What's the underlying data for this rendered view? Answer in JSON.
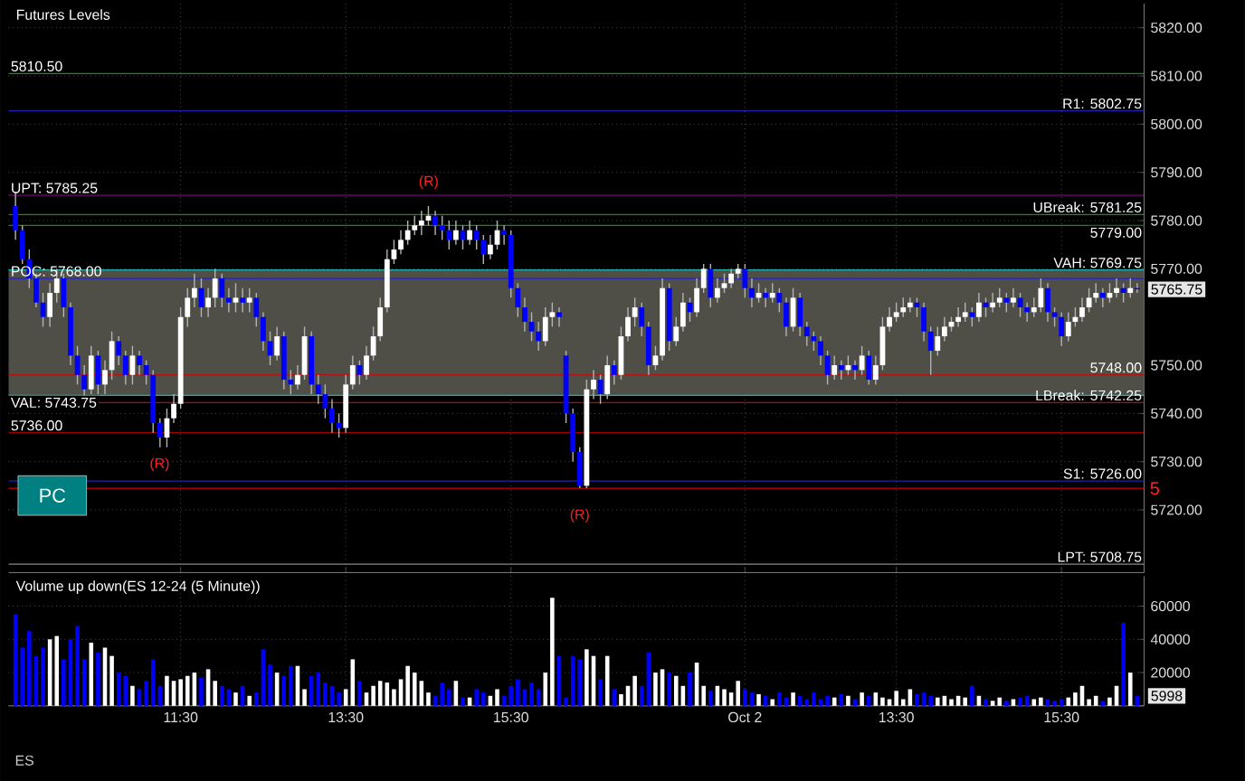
{
  "chart_data": [
    {
      "type": "candlestick",
      "title": "Futures Levels",
      "categories": [
        null,
        null,
        null,
        null,
        null,
        null,
        null,
        null,
        null,
        null,
        null,
        null,
        null,
        null,
        null,
        null,
        null,
        null,
        null,
        null,
        null,
        null,
        null,
        null,
        null,
        null,
        null,
        null,
        null,
        null,
        null,
        null,
        null,
        null,
        null,
        null,
        null,
        null,
        null,
        null,
        null,
        null,
        null,
        null,
        null,
        null,
        null,
        null,
        null,
        null,
        null,
        null,
        null,
        null,
        null,
        null,
        null,
        null,
        null,
        null,
        null,
        null,
        null,
        null,
        null,
        null,
        null,
        null,
        null,
        null,
        null,
        null,
        null,
        null,
        null,
        null,
        null,
        null,
        null,
        null,
        null,
        null,
        null,
        null,
        null,
        null,
        null,
        null,
        null,
        null,
        null,
        null,
        null,
        null,
        null,
        null,
        null,
        null,
        null,
        null,
        null,
        null,
        null,
        null,
        null,
        null,
        null,
        null,
        null,
        null,
        null,
        null,
        null,
        null,
        null,
        null,
        null,
        null,
        null,
        null,
        null,
        null,
        null,
        null,
        null,
        null,
        null,
        null,
        null,
        null,
        null,
        null,
        null,
        null,
        null,
        null,
        null,
        null,
        null,
        null,
        null,
        null,
        null,
        null,
        null,
        null,
        null,
        null,
        null,
        null,
        null,
        null,
        null,
        null,
        null,
        null,
        null,
        null,
        null,
        null,
        null,
        null,
        null,
        null
      ],
      "ohlc": [
        [
          5783,
          5786,
          5776,
          5778
        ],
        [
          5778,
          5779,
          5771,
          5772
        ],
        [
          5772,
          5774,
          5766,
          5768
        ],
        [
          5768,
          5769,
          5762,
          5763
        ],
        [
          5763,
          5765,
          5758,
          5760
        ],
        [
          5760,
          5767,
          5758,
          5765
        ],
        [
          5765,
          5770,
          5763,
          5768
        ],
        [
          5768,
          5769,
          5760,
          5762
        ],
        [
          5762,
          5763,
          5750,
          5752
        ],
        [
          5752,
          5754,
          5746,
          5748
        ],
        [
          5748,
          5750,
          5743,
          5745
        ],
        [
          5745,
          5754,
          5744,
          5752
        ],
        [
          5752,
          5753,
          5744,
          5746
        ],
        [
          5746,
          5751,
          5744,
          5749
        ],
        [
          5749,
          5757,
          5747,
          5755
        ],
        [
          5755,
          5756,
          5750,
          5752
        ],
        [
          5752,
          5753,
          5746,
          5748
        ],
        [
          5748,
          5754,
          5746,
          5752
        ],
        [
          5752,
          5753,
          5748,
          5750
        ],
        [
          5750,
          5751,
          5746,
          5748
        ],
        [
          5748,
          5749,
          5736,
          5738
        ],
        [
          5738,
          5739,
          5733,
          5735
        ],
        [
          5735,
          5741,
          5733,
          5739
        ],
        [
          5739,
          5744,
          5738,
          5742
        ],
        [
          5742,
          5762,
          5741,
          5760
        ],
        [
          5760,
          5766,
          5758,
          5764
        ],
        [
          5764,
          5769,
          5762,
          5766
        ],
        [
          5766,
          5768,
          5760,
          5762
        ],
        [
          5762,
          5766,
          5760,
          5764
        ],
        [
          5764,
          5770,
          5762,
          5768
        ],
        [
          5768,
          5769,
          5762,
          5764
        ],
        [
          5764,
          5766,
          5761,
          5763
        ],
        [
          5763,
          5767,
          5761,
          5764
        ],
        [
          5764,
          5766,
          5761,
          5763
        ],
        [
          5763,
          5766,
          5761,
          5764
        ],
        [
          5764,
          5765,
          5758,
          5760
        ],
        [
          5760,
          5761,
          5753,
          5755
        ],
        [
          5755,
          5757,
          5750,
          5752
        ],
        [
          5752,
          5758,
          5751,
          5756
        ],
        [
          5756,
          5757,
          5745,
          5747
        ],
        [
          5747,
          5749,
          5744,
          5746
        ],
        [
          5746,
          5750,
          5745,
          5748
        ],
        [
          5748,
          5758,
          5747,
          5756
        ],
        [
          5756,
          5757,
          5744,
          5746
        ],
        [
          5746,
          5748,
          5742,
          5744
        ],
        [
          5744,
          5746,
          5739,
          5741
        ],
        [
          5741,
          5743,
          5736,
          5738
        ],
        [
          5738,
          5740,
          5735,
          5737
        ],
        [
          5737,
          5748,
          5736,
          5746
        ],
        [
          5746,
          5752,
          5745,
          5750
        ],
        [
          5750,
          5751,
          5746,
          5748
        ],
        [
          5748,
          5754,
          5747,
          5752
        ],
        [
          5752,
          5758,
          5751,
          5756
        ],
        [
          5756,
          5764,
          5755,
          5762
        ],
        [
          5762,
          5774,
          5761,
          5772
        ],
        [
          5772,
          5776,
          5771,
          5774
        ],
        [
          5774,
          5778,
          5773,
          5776
        ],
        [
          5776,
          5780,
          5775,
          5778
        ],
        [
          5778,
          5781,
          5777,
          5779
        ],
        [
          5779,
          5782,
          5777,
          5780
        ],
        [
          5780,
          5783,
          5779,
          5781
        ],
        [
          5781,
          5782,
          5777,
          5779
        ],
        [
          5779,
          5781,
          5776,
          5778
        ],
        [
          5778,
          5780,
          5774,
          5776
        ],
        [
          5776,
          5780,
          5775,
          5778
        ],
        [
          5778,
          5779,
          5774,
          5776
        ],
        [
          5776,
          5780,
          5775,
          5778
        ],
        [
          5778,
          5779,
          5774,
          5776
        ],
        [
          5776,
          5777,
          5771,
          5773
        ],
        [
          5773,
          5777,
          5772,
          5775
        ],
        [
          5775,
          5780,
          5774,
          5778
        ],
        [
          5778,
          5779,
          5775,
          5777
        ],
        [
          5777,
          5778,
          5764,
          5766
        ],
        [
          5766,
          5767,
          5760,
          5762
        ],
        [
          5762,
          5764,
          5757,
          5759
        ],
        [
          5759,
          5761,
          5755,
          5757
        ],
        [
          5757,
          5759,
          5753,
          5755
        ],
        [
          5755,
          5762,
          5754,
          5760
        ],
        [
          5760,
          5763,
          5758,
          5761
        ],
        [
          5761,
          5762,
          5758,
          5760
        ],
        [
          5752,
          5753,
          5738,
          5740
        ],
        [
          5740,
          5741,
          5730,
          5732
        ],
        [
          5732,
          5733,
          5724.5,
          5725
        ],
        [
          5725,
          5747,
          5724.5,
          5745
        ],
        [
          5745,
          5749,
          5743,
          5747
        ],
        [
          5747,
          5748,
          5742,
          5744
        ],
        [
          5744,
          5752,
          5743,
          5750
        ],
        [
          5750,
          5751,
          5746,
          5748
        ],
        [
          5748,
          5758,
          5747,
          5756
        ],
        [
          5756,
          5762,
          5755,
          5760
        ],
        [
          5760,
          5764,
          5758,
          5762
        ],
        [
          5762,
          5763,
          5756,
          5758
        ],
        [
          5758,
          5759,
          5748,
          5750
        ],
        [
          5750,
          5754,
          5749,
          5752
        ],
        [
          5752,
          5768,
          5751,
          5766
        ],
        [
          5766,
          5767,
          5753,
          5755
        ],
        [
          5755,
          5760,
          5754,
          5758
        ],
        [
          5758,
          5765,
          5757,
          5763
        ],
        [
          5763,
          5764,
          5759,
          5761
        ],
        [
          5761,
          5768,
          5760,
          5766
        ],
        [
          5766,
          5771,
          5765,
          5770
        ],
        [
          5770,
          5771,
          5762,
          5764
        ],
        [
          5764,
          5768,
          5763,
          5766
        ],
        [
          5766,
          5769,
          5765,
          5767
        ],
        [
          5767,
          5770,
          5766,
          5769
        ],
        [
          5769,
          5771,
          5768,
          5770
        ],
        [
          5770,
          5771,
          5764,
          5766
        ],
        [
          5766,
          5768,
          5762,
          5764
        ],
        [
          5764,
          5767,
          5763,
          5765
        ],
        [
          5765,
          5766,
          5762,
          5764
        ],
        [
          5764,
          5767,
          5763,
          5765
        ],
        [
          5765,
          5766,
          5761,
          5763
        ],
        [
          5763,
          5764,
          5756,
          5758
        ],
        [
          5758,
          5766,
          5757,
          5764
        ],
        [
          5764,
          5765,
          5756,
          5758
        ],
        [
          5758,
          5759,
          5754,
          5756
        ],
        [
          5756,
          5757,
          5753,
          5755
        ],
        [
          5755,
          5756,
          5750,
          5752
        ],
        [
          5752,
          5753,
          5746,
          5748
        ],
        [
          5748,
          5752,
          5747,
          5750
        ],
        [
          5750,
          5751,
          5747,
          5749
        ],
        [
          5749,
          5752,
          5748,
          5750
        ],
        [
          5750,
          5751,
          5747,
          5749
        ],
        [
          5749,
          5754,
          5748,
          5752
        ],
        [
          5752,
          5753,
          5746,
          5747
        ],
        [
          5747,
          5752,
          5746,
          5750
        ],
        [
          5750,
          5760,
          5749,
          5758
        ],
        [
          5758,
          5762,
          5757,
          5760
        ],
        [
          5760,
          5763,
          5759,
          5761
        ],
        [
          5761,
          5764,
          5760,
          5762
        ],
        [
          5762,
          5764,
          5761,
          5763
        ],
        [
          5763,
          5764,
          5760,
          5762
        ],
        [
          5762,
          5763,
          5755,
          5757
        ],
        [
          5757,
          5758,
          5748,
          5753
        ],
        [
          5753,
          5758,
          5752,
          5756
        ],
        [
          5756,
          5760,
          5755,
          5758
        ],
        [
          5758,
          5760,
          5757,
          5759
        ],
        [
          5759,
          5762,
          5758,
          5760
        ],
        [
          5760,
          5763,
          5759,
          5761
        ],
        [
          5761,
          5762,
          5758,
          5760
        ],
        [
          5760,
          5765,
          5759,
          5763
        ],
        [
          5763,
          5764,
          5760,
          5762
        ],
        [
          5762,
          5765,
          5761,
          5763
        ],
        [
          5763,
          5766,
          5762,
          5764
        ],
        [
          5764,
          5765,
          5761,
          5763
        ],
        [
          5763,
          5766,
          5762,
          5764
        ],
        [
          5764,
          5765,
          5760,
          5762
        ],
        [
          5762,
          5763,
          5759,
          5761
        ],
        [
          5761,
          5764,
          5760,
          5762
        ],
        [
          5762,
          5768,
          5761,
          5766
        ],
        [
          5766,
          5767,
          5759,
          5761
        ],
        [
          5761,
          5762,
          5758,
          5760
        ],
        [
          5760,
          5761,
          5754,
          5756
        ],
        [
          5756,
          5761,
          5755,
          5759
        ],
        [
          5759,
          5762,
          5758,
          5760
        ],
        [
          5760,
          5764,
          5759,
          5762
        ],
        [
          5762,
          5766,
          5761,
          5764
        ],
        [
          5764,
          5767,
          5763,
          5765
        ],
        [
          5765,
          5766,
          5762,
          5764
        ],
        [
          5764,
          5767,
          5763,
          5765
        ],
        [
          5765,
          5768,
          5764,
          5766
        ],
        [
          5766,
          5767,
          5763,
          5765
        ],
        [
          5765,
          5768,
          5764,
          5766
        ],
        [
          5766,
          5767,
          5765,
          5765.75
        ]
      ],
      "colors": [
        "#0000ff",
        "#0000ff",
        "#0000ff",
        "#0000ff",
        "#0000ff",
        "#ffffff",
        "#ffffff",
        "#0000ff",
        "#0000ff",
        "#0000ff",
        "#0000ff",
        "#ffffff",
        "#0000ff",
        "#ffffff",
        "#ffffff",
        "#0000ff",
        "#0000ff",
        "#ffffff",
        "#0000ff",
        "#0000ff",
        "#0000ff",
        "#0000ff",
        "#ffffff",
        "#ffffff",
        "#ffffff",
        "#ffffff",
        "#ffffff",
        "#0000ff",
        "#ffffff",
        "#ffffff",
        "#0000ff",
        "#0000ff",
        "#ffffff",
        "#0000ff",
        "#ffffff",
        "#0000ff",
        "#0000ff",
        "#0000ff",
        "#ffffff",
        "#0000ff",
        "#0000ff",
        "#ffffff",
        "#ffffff",
        "#0000ff",
        "#0000ff",
        "#0000ff",
        "#0000ff",
        "#0000ff",
        "#ffffff",
        "#ffffff",
        "#0000ff",
        "#ffffff",
        "#ffffff",
        "#ffffff",
        "#ffffff",
        "#ffffff",
        "#ffffff",
        "#ffffff",
        "#ffffff",
        "#ffffff",
        "#ffffff",
        "#0000ff",
        "#0000ff",
        "#0000ff",
        "#ffffff",
        "#0000ff",
        "#ffffff",
        "#0000ff",
        "#0000ff",
        "#ffffff",
        "#ffffff",
        "#0000ff",
        "#0000ff",
        "#0000ff",
        "#0000ff",
        "#0000ff",
        "#0000ff",
        "#ffffff",
        "#ffffff",
        "#0000ff",
        "#0000ff",
        "#0000ff",
        "#0000ff",
        "#ffffff",
        "#ffffff",
        "#0000ff",
        "#ffffff",
        "#0000ff",
        "#ffffff",
        "#ffffff",
        "#ffffff",
        "#0000ff",
        "#0000ff",
        "#ffffff",
        "#ffffff",
        "#0000ff",
        "#ffffff",
        "#ffffff",
        "#0000ff",
        "#ffffff",
        "#ffffff",
        "#0000ff",
        "#ffffff",
        "#ffffff",
        "#ffffff",
        "#ffffff",
        "#0000ff",
        "#0000ff",
        "#ffffff",
        "#0000ff",
        "#ffffff",
        "#0000ff",
        "#0000ff",
        "#ffffff",
        "#0000ff",
        "#0000ff",
        "#0000ff",
        "#0000ff",
        "#0000ff",
        "#ffffff",
        "#0000ff",
        "#ffffff",
        "#0000ff",
        "#ffffff",
        "#0000ff",
        "#ffffff",
        "#ffffff",
        "#ffffff",
        "#ffffff",
        "#ffffff",
        "#ffffff",
        "#0000ff",
        "#0000ff",
        "#0000ff",
        "#ffffff",
        "#ffffff",
        "#ffffff",
        "#ffffff",
        "#ffffff",
        "#0000ff",
        "#ffffff",
        "#0000ff",
        "#ffffff",
        "#ffffff",
        "#0000ff",
        "#ffffff",
        "#0000ff",
        "#0000ff",
        "#ffffff",
        "#ffffff",
        "#0000ff",
        "#0000ff",
        "#0000ff",
        "#ffffff",
        "#ffffff",
        "#ffffff",
        "#ffffff",
        "#ffffff",
        "#0000ff",
        "#ffffff",
        "#ffffff",
        "#0000ff",
        "#ffffff",
        "#0000ff"
      ],
      "ylim": [
        5707,
        5825
      ],
      "yticks": [
        {
          "value": 5720,
          "label": "5720.00"
        },
        {
          "value": 5730,
          "label": "5730.00"
        },
        {
          "value": 5740,
          "label": "5740.00"
        },
        {
          "value": 5750,
          "label": "5750.00"
        },
        {
          "value": 5760,
          "label": null
        },
        {
          "value": 5770,
          "label": "5770.00"
        },
        {
          "value": 5780,
          "label": "5780.00"
        },
        {
          "value": 5790,
          "label": "5790.00"
        },
        {
          "value": 5800,
          "label": "5800.00"
        },
        {
          "value": 5810,
          "label": "5810.00"
        },
        {
          "value": 5820,
          "label": "5820.00"
        }
      ],
      "tick_labels": "y",
      "grid": true,
      "bands": [
        {
          "axis": "y",
          "from": 5743.75,
          "to": 5769.75,
          "color": "#4f4f48"
        }
      ],
      "ref_lines": [
        {
          "axis": "y",
          "value": 5810.5,
          "label": "5810.50",
          "color": "#1a8c1a"
        },
        {
          "axis": "y",
          "value": 5802.75,
          "label": "R1: 5802.75",
          "color": "#2222aa"
        },
        {
          "axis": "y",
          "value": 5785.25,
          "label": "UPT: 5785.25",
          "color": "#990099"
        },
        {
          "axis": "y",
          "value": 5781.25,
          "label": "UBreak: 5781.25",
          "color": "#1a8c1a"
        },
        {
          "axis": "y",
          "value": 5779,
          "label": "5779.00",
          "color": "#1a8c1a"
        },
        {
          "axis": "y",
          "value": 5769.75,
          "label": "VAH: 5769.75",
          "color": "#20b2aa"
        },
        {
          "axis": "y",
          "value": 5768,
          "label": "POC: 5768.00",
          "color": "#2222cc"
        },
        {
          "axis": "y",
          "value": 5748,
          "label": "5748.00",
          "color": "#cc0000"
        },
        {
          "axis": "y",
          "value": 5743.75,
          "label": "VAL: 5743.75",
          "color": "#20b2aa"
        },
        {
          "axis": "y",
          "value": 5742.25,
          "label": "LBreak: 5742.25",
          "color": "#cc0000"
        },
        {
          "axis": "y",
          "value": 5736,
          "label": "5736.00",
          "color": "#cc0000"
        },
        {
          "axis": "y",
          "value": 5726,
          "label": "S1: 5726.00",
          "color": "#2222aa"
        },
        {
          "axis": "y",
          "value": 5724.5,
          "color": "#cc0000"
        },
        {
          "axis": "y",
          "value": 5708.75,
          "label": "LPT: 5708.75",
          "color": "#888888"
        }
      ],
      "annotations": [
        "(R)",
        "(R)",
        "(R)",
        "5765.75",
        "PC",
        "5"
      ]
    },
    {
      "type": "bar",
      "title": "Volume up down(ES 12-24 (5 Minute))",
      "categories": [
        null,
        null,
        null,
        null,
        null,
        null,
        null,
        null,
        null,
        null,
        null,
        null,
        null,
        null,
        null,
        null,
        null,
        null,
        null,
        null,
        null,
        null,
        null,
        null,
        "11:30",
        null,
        null,
        null,
        null,
        null,
        null,
        null,
        null,
        null,
        null,
        null,
        null,
        null,
        null,
        null,
        null,
        null,
        null,
        null,
        null,
        null,
        null,
        null,
        "13:30",
        null,
        null,
        null,
        null,
        null,
        null,
        null,
        null,
        null,
        null,
        null,
        null,
        null,
        null,
        null,
        null,
        null,
        null,
        null,
        null,
        null,
        null,
        null,
        "15:30",
        null,
        null,
        null,
        null,
        null,
        null,
        null,
        null,
        null,
        null,
        null,
        null,
        null,
        null,
        null,
        null,
        null,
        null,
        null,
        null,
        null,
        null,
        null,
        null,
        null,
        null,
        null,
        null,
        null,
        null,
        null,
        null,
        null,
        "Oct 2",
        null,
        null,
        null,
        null,
        null,
        null,
        null,
        null,
        null,
        null,
        null,
        null,
        null,
        null,
        null,
        null,
        null,
        null,
        null,
        null,
        null,
        "13:30",
        null,
        null,
        null,
        null,
        null,
        null,
        null,
        null,
        null,
        null,
        null,
        null,
        null,
        null,
        null,
        null,
        null,
        null,
        null,
        null,
        null,
        null,
        null,
        "15:30",
        null,
        null,
        null,
        null,
        null,
        null,
        null,
        null,
        null,
        null,
        null
      ],
      "values": [
        55000,
        35000,
        45000,
        30000,
        35000,
        40000,
        42000,
        28000,
        40000,
        48000,
        28000,
        38000,
        32000,
        35000,
        30000,
        20000,
        18000,
        12000,
        10000,
        15000,
        28000,
        12000,
        18000,
        15000,
        16000,
        18000,
        20000,
        17000,
        22000,
        15000,
        12000,
        10000,
        8000,
        12000,
        6000,
        8000,
        34000,
        25000,
        20000,
        18000,
        24000,
        24000,
        10000,
        18000,
        20000,
        14000,
        12000,
        8000,
        10000,
        28000,
        15000,
        8000,
        12000,
        15000,
        14000,
        10000,
        16000,
        24000,
        20000,
        15000,
        8000,
        6000,
        14000,
        10000,
        15000,
        5000,
        5000,
        10000,
        8000,
        6000,
        10000,
        6000,
        12000,
        16000,
        10000,
        14000,
        10000,
        20000,
        65000,
        30000,
        5000,
        30000,
        28000,
        34000,
        30000,
        16000,
        30000,
        10000,
        7000,
        12000,
        18000,
        12000,
        32000,
        20000,
        22000,
        20000,
        18000,
        12000,
        20000,
        26000,
        12000,
        9000,
        12000,
        10000,
        8000,
        15000,
        10000,
        8000,
        7000,
        6000,
        4000,
        8000,
        5000,
        8000,
        6000,
        4000,
        8000,
        4000,
        6000,
        5000,
        7000,
        6000,
        4000,
        8000,
        6000,
        8000,
        5000,
        4000,
        9000,
        4000,
        10000,
        7000,
        8000,
        6000,
        5000,
        6000,
        4000,
        6000,
        5000,
        12000,
        6000,
        4000,
        3000,
        5000,
        3000,
        4000,
        5000,
        6000,
        4000,
        5000,
        4000,
        3000,
        4000,
        5000,
        8000,
        12000,
        4000,
        6000,
        3000,
        5000,
        12000,
        50000,
        20000,
        5998
      ],
      "colors": [
        "#0000ff",
        "#0000ff",
        "#0000ff",
        "#0000ff",
        "#0000ff",
        "#ffffff",
        "#ffffff",
        "#0000ff",
        "#0000ff",
        "#0000ff",
        "#0000ff",
        "#ffffff",
        "#0000ff",
        "#ffffff",
        "#ffffff",
        "#0000ff",
        "#0000ff",
        "#ffffff",
        "#0000ff",
        "#0000ff",
        "#0000ff",
        "#0000ff",
        "#ffffff",
        "#ffffff",
        "#ffffff",
        "#ffffff",
        "#ffffff",
        "#0000ff",
        "#ffffff",
        "#ffffff",
        "#0000ff",
        "#0000ff",
        "#ffffff",
        "#0000ff",
        "#ffffff",
        "#0000ff",
        "#0000ff",
        "#0000ff",
        "#ffffff",
        "#0000ff",
        "#0000ff",
        "#ffffff",
        "#ffffff",
        "#0000ff",
        "#0000ff",
        "#0000ff",
        "#0000ff",
        "#0000ff",
        "#ffffff",
        "#ffffff",
        "#0000ff",
        "#ffffff",
        "#ffffff",
        "#ffffff",
        "#ffffff",
        "#ffffff",
        "#ffffff",
        "#ffffff",
        "#ffffff",
        "#ffffff",
        "#ffffff",
        "#0000ff",
        "#0000ff",
        "#0000ff",
        "#ffffff",
        "#0000ff",
        "#ffffff",
        "#0000ff",
        "#0000ff",
        "#ffffff",
        "#ffffff",
        "#0000ff",
        "#0000ff",
        "#0000ff",
        "#0000ff",
        "#0000ff",
        "#0000ff",
        "#ffffff",
        "#ffffff",
        "#0000ff",
        "#0000ff",
        "#0000ff",
        "#0000ff",
        "#ffffff",
        "#ffffff",
        "#0000ff",
        "#ffffff",
        "#0000ff",
        "#ffffff",
        "#ffffff",
        "#ffffff",
        "#0000ff",
        "#0000ff",
        "#ffffff",
        "#ffffff",
        "#0000ff",
        "#ffffff",
        "#ffffff",
        "#0000ff",
        "#ffffff",
        "#ffffff",
        "#0000ff",
        "#ffffff",
        "#ffffff",
        "#ffffff",
        "#ffffff",
        "#0000ff",
        "#0000ff",
        "#ffffff",
        "#0000ff",
        "#ffffff",
        "#0000ff",
        "#0000ff",
        "#ffffff",
        "#0000ff",
        "#0000ff",
        "#0000ff",
        "#0000ff",
        "#0000ff",
        "#ffffff",
        "#0000ff",
        "#ffffff",
        "#0000ff",
        "#ffffff",
        "#0000ff",
        "#ffffff",
        "#ffffff",
        "#ffffff",
        "#ffffff",
        "#ffffff",
        "#ffffff",
        "#0000ff",
        "#0000ff",
        "#0000ff",
        "#ffffff",
        "#ffffff",
        "#ffffff",
        "#ffffff",
        "#ffffff",
        "#0000ff",
        "#ffffff",
        "#0000ff",
        "#ffffff",
        "#ffffff",
        "#0000ff",
        "#ffffff",
        "#0000ff",
        "#0000ff",
        "#ffffff",
        "#ffffff",
        "#0000ff",
        "#0000ff",
        "#0000ff",
        "#ffffff",
        "#ffffff",
        "#ffffff",
        "#ffffff",
        "#ffffff",
        "#0000ff",
        "#ffffff",
        "#ffffff",
        "#0000ff",
        "#ffffff",
        "#0000ff"
      ],
      "ylim": [
        0,
        78000
      ],
      "yticks": [
        {
          "value": 0,
          "label": null
        },
        20000,
        40000,
        60000
      ],
      "grid": true,
      "annotations": [
        "5998",
        "ES"
      ]
    }
  ]
}
